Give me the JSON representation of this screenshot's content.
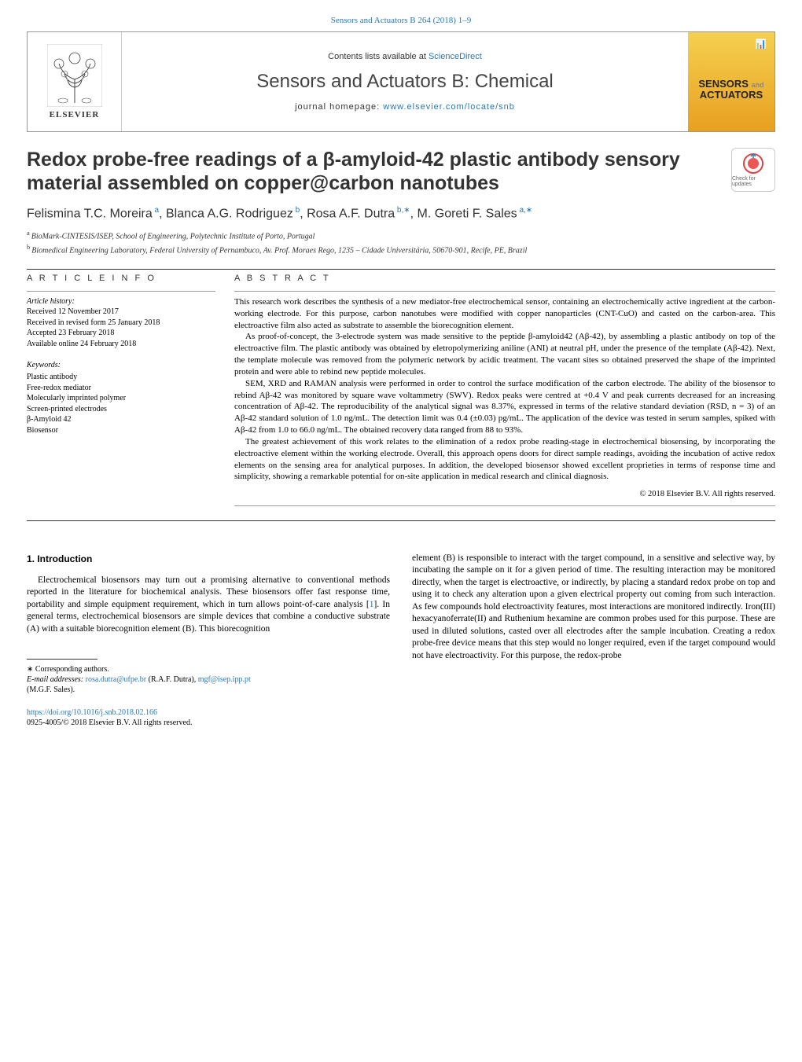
{
  "header": {
    "journal_ref": "Sensors and Actuators B 264 (2018) 1–9",
    "contents_pre": "Contents lists available at ",
    "contents_link": "ScienceDirect",
    "journal_name": "Sensors and Actuators B: Chemical",
    "homepage_pre": "journal homepage: ",
    "homepage_url": "www.elsevier.com/locate/snb",
    "elsevier": "ELSEVIER",
    "cover_label_1": "SENSORS",
    "cover_label_and": "and",
    "cover_label_2": "ACTUATORS"
  },
  "check_updates": "Check for updates",
  "title": "Redox probe-free readings of a β-amyloid-42 plastic antibody sensory material assembled on copper@carbon nanotubes",
  "authors_html": "Felismina T.C. Moreira|a|, Blanca A.G. Rodriguez|b|, Rosa A.F. Dutra|b,∗|, M. Goreti F. Sales|a,∗|",
  "authors": [
    {
      "name": "Felismina T.C. Moreira",
      "sup": "a"
    },
    {
      "name": "Blanca A.G. Rodriguez",
      "sup": "b"
    },
    {
      "name": "Rosa A.F. Dutra",
      "sup": "b,∗"
    },
    {
      "name": "M. Goreti F. Sales",
      "sup": "a,∗"
    }
  ],
  "affiliations": [
    {
      "sup": "a",
      "text": "BioMark-CINTESIS/ISEP, School of Engineering, Polytechnic Institute of Porto, Portugal"
    },
    {
      "sup": "b",
      "text": "Biomedical Engineering Laboratory, Federal University of Pernambuco, Av. Prof. Moraes Rego, 1235 – Cidade Universitária, 50670-901, Recife, PE, Brazil"
    }
  ],
  "info": {
    "head": "A R T I C L E   I N F O",
    "history_title": "Article history:",
    "history": [
      "Received 12 November 2017",
      "Received in revised form 25 January 2018",
      "Accepted 23 February 2018",
      "Available online 24 February 2018"
    ],
    "keywords_title": "Keywords:",
    "keywords": [
      "Plastic antibody",
      "Free-redox mediator",
      "Molecularly imprinted polymer",
      "Screen-printed electrodes",
      "β-Amyloid 42",
      "Biosensor"
    ]
  },
  "abstract": {
    "head": "A B S T R A C T",
    "paragraphs": [
      "This research work describes the synthesis of a new mediator-free electrochemical sensor, containing an electrochemically active ingredient at the carbon-working electrode. For this purpose, carbon nanotubes were modified with copper nanoparticles (CNT-CuO) and casted on the carbon-area. This electroactive film also acted as substrate to assemble the biorecognition element.",
      "As proof-of-concept, the 3-electrode system was made sensitive to the peptide β-amyloid42 (Aβ-42), by assembling a plastic antibody on top of the electroactive film. The plastic antibody was obtained by eletropolymerizing aniline (ANI) at neutral pH, under the presence of the template (Aβ-42). Next, the template molecule was removed from the polymeric network by acidic treatment. The vacant sites so obtained preserved the shape of the imprinted protein and were able to rebind new peptide molecules.",
      "SEM, XRD and RAMAN analysis were performed in order to control the surface modification of the carbon electrode. The ability of the biosensor to rebind Aβ-42 was monitored by square wave voltammetry (SWV). Redox peaks were centred at +0.4 V and peak currents decreased for an increasing concentration of Aβ-42. The reproducibility of the analytical signal was 8.37%, expressed in terms of the relative standard deviation (RSD, n = 3) of an Aβ-42 standard solution of 1.0 ng/mL. The detection limit was 0.4 (±0.03) pg/mL. The application of the device was tested in serum samples, spiked with Aβ-42 from 1.0 to 66.0 ng/mL. The obtained recovery data ranged from 88 to 93%.",
      "The greatest achievement of this work relates to the elimination of a redox probe reading-stage in electrochemical biosensing, by incorporating the electroactive element within the working electrode. Overall, this approach opens doors for direct sample readings, avoiding the incubation of active redox elements on the sensing area for analytical purposes. In addition, the developed biosensor showed excellent proprieties in terms of response time and simplicity, showing a remarkable potential for on-site application in medical research and clinical diagnosis."
    ],
    "copyright": "© 2018 Elsevier B.V. All rights reserved."
  },
  "body": {
    "intro_heading": "1.  Introduction",
    "col1_p1": "Electrochemical biosensors may turn out a promising alternative to conventional methods reported in the literature for biochemical analysis. These biosensors offer fast response time, portability and simple equipment requirement, which in turn allows point-of-care analysis [",
    "col1_ref1": "1",
    "col1_p1b": "]. In general terms, electrochemical biosensors are simple devices that combine a conductive substrate (A) with a suitable biorecognition element (B). This biorecognition",
    "col2_p1": "element (B) is responsible to interact with the target compound, in a sensitive and selective way, by incubating the sample on it for a given period of time. The resulting interaction may be monitored directly, when the target is electroactive, or indirectly, by placing a standard redox probe on top and using it to check any alteration upon a given electrical property out coming from such interaction. As few compounds hold electroactivity features, most interactions are monitored indirectly. Iron(III) hexacyanoferrate(II) and Ruthenium hexamine are common probes used for this purpose. These are used in diluted solutions, casted over all electrodes after the sample incubation. Creating a redox probe-free device means that this step would no longer required, even if the target compound would not have electroactivity. For this purpose, the redox-probe"
  },
  "footnotes": {
    "corresp": "∗  Corresponding authors.",
    "email_label": "E-mail addresses: ",
    "email1": "rosa.dutra@ufpe.br",
    "email1_who": " (R.A.F. Dutra), ",
    "email2": "mgf@isep.ipp.pt",
    "email2_who": "(M.G.F. Sales)."
  },
  "doi": {
    "url": "https://doi.org/10.1016/j.snb.2018.02.166",
    "line2": "0925-4005/© 2018 Elsevier B.V. All rights reserved."
  },
  "colors": {
    "link": "#2878b8",
    "accent_gold_top": "#f5d050",
    "accent_gold_bot": "#e8a020",
    "text": "#000000",
    "rule": "#333333"
  }
}
